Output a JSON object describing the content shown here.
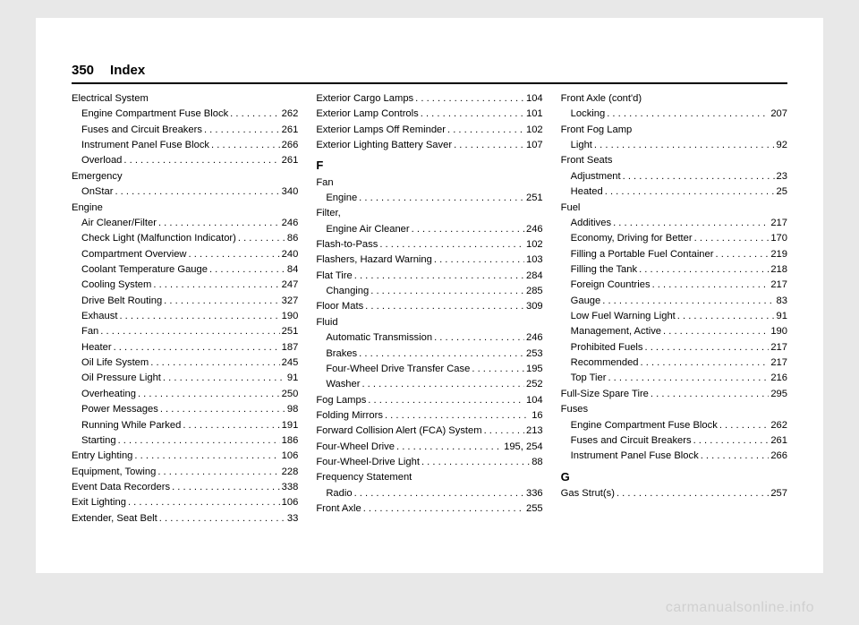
{
  "header": {
    "pageNumber": "350",
    "section": "Index"
  },
  "watermark": "carmanualsonline.info",
  "columns": [
    [
      {
        "type": "head",
        "label": "Electrical System"
      },
      {
        "type": "sub",
        "label": "Engine Compartment Fuse Block",
        "pg": "262"
      },
      {
        "type": "sub",
        "label": "Fuses and Circuit Breakers",
        "pg": "261"
      },
      {
        "type": "sub",
        "label": "Instrument Panel Fuse Block",
        "pg": "266"
      },
      {
        "type": "sub",
        "label": "Overload",
        "pg": "261"
      },
      {
        "type": "head",
        "label": "Emergency"
      },
      {
        "type": "sub",
        "label": "OnStar",
        "pg": "340"
      },
      {
        "type": "head",
        "label": "Engine"
      },
      {
        "type": "sub",
        "label": "Air Cleaner/Filter",
        "pg": "246"
      },
      {
        "type": "sub",
        "label": "Check Light (Malfunction Indicator)",
        "pg": "86"
      },
      {
        "type": "sub",
        "label": "Compartment Overview",
        "pg": "240"
      },
      {
        "type": "sub",
        "label": "Coolant Temperature Gauge",
        "pg": "84"
      },
      {
        "type": "sub",
        "label": "Cooling System",
        "pg": "247"
      },
      {
        "type": "sub",
        "label": "Drive Belt Routing",
        "pg": "327"
      },
      {
        "type": "sub",
        "label": "Exhaust",
        "pg": "190"
      },
      {
        "type": "sub",
        "label": "Fan",
        "pg": "251"
      },
      {
        "type": "sub",
        "label": "Heater",
        "pg": "187"
      },
      {
        "type": "sub",
        "label": "Oil Life System",
        "pg": "245"
      },
      {
        "type": "sub",
        "label": "Oil Pressure Light",
        "pg": "91"
      },
      {
        "type": "sub",
        "label": "Overheating",
        "pg": "250"
      },
      {
        "type": "sub",
        "label": "Power Messages",
        "pg": "98"
      },
      {
        "type": "sub",
        "label": "Running While Parked",
        "pg": "191"
      },
      {
        "type": "sub",
        "label": "Starting",
        "pg": "186"
      },
      {
        "type": "top",
        "label": "Entry Lighting",
        "pg": "106"
      },
      {
        "type": "top",
        "label": "Equipment, Towing",
        "pg": "228"
      },
      {
        "type": "top",
        "label": "Event Data Recorders",
        "pg": "338"
      },
      {
        "type": "top",
        "label": "Exit Lighting",
        "pg": "106"
      },
      {
        "type": "top",
        "label": "Extender, Seat Belt",
        "pg": "33"
      }
    ],
    [
      {
        "type": "top",
        "label": "Exterior Cargo Lamps",
        "pg": "104"
      },
      {
        "type": "top",
        "label": "Exterior Lamp Controls",
        "pg": "101"
      },
      {
        "type": "top",
        "label": "Exterior Lamps Off Reminder",
        "pg": "102"
      },
      {
        "type": "top",
        "label": "Exterior Lighting Battery Saver",
        "pg": "107"
      },
      {
        "type": "letter",
        "label": "F"
      },
      {
        "type": "head",
        "label": "Fan"
      },
      {
        "type": "sub",
        "label": "Engine",
        "pg": "251"
      },
      {
        "type": "head",
        "label": "Filter,"
      },
      {
        "type": "sub",
        "label": "Engine Air Cleaner",
        "pg": "246"
      },
      {
        "type": "top",
        "label": "Flash-to-Pass",
        "pg": "102"
      },
      {
        "type": "top",
        "label": "Flashers, Hazard Warning",
        "pg": "103"
      },
      {
        "type": "top",
        "label": "Flat Tire",
        "pg": "284"
      },
      {
        "type": "sub",
        "label": "Changing",
        "pg": "285"
      },
      {
        "type": "top",
        "label": "Floor Mats",
        "pg": "309"
      },
      {
        "type": "head",
        "label": "Fluid"
      },
      {
        "type": "sub",
        "label": "Automatic Transmission",
        "pg": "246"
      },
      {
        "type": "sub",
        "label": "Brakes",
        "pg": "253"
      },
      {
        "type": "sub",
        "label": "Four-Wheel Drive Transfer Case",
        "pg": "195"
      },
      {
        "type": "sub",
        "label": "Washer",
        "pg": "252"
      },
      {
        "type": "top",
        "label": "Fog Lamps",
        "pg": "104"
      },
      {
        "type": "top",
        "label": "Folding Mirrors",
        "pg": "16"
      },
      {
        "type": "top",
        "label": "Forward Collision Alert (FCA) System",
        "pg": "213"
      },
      {
        "type": "top",
        "label": "Four-Wheel Drive",
        "pg": "195, 254"
      },
      {
        "type": "top",
        "label": "Four-Wheel-Drive Light",
        "pg": "88"
      },
      {
        "type": "head",
        "label": "Frequency Statement"
      },
      {
        "type": "sub",
        "label": "Radio",
        "pg": "336"
      },
      {
        "type": "top",
        "label": "Front Axle",
        "pg": "255"
      }
    ],
    [
      {
        "type": "head",
        "label": "Front Axle (cont'd)"
      },
      {
        "type": "sub",
        "label": "Locking",
        "pg": "207"
      },
      {
        "type": "head",
        "label": "Front Fog Lamp"
      },
      {
        "type": "sub",
        "label": "Light",
        "pg": "92"
      },
      {
        "type": "head",
        "label": "Front Seats"
      },
      {
        "type": "sub",
        "label": "Adjustment",
        "pg": "23"
      },
      {
        "type": "sub",
        "label": "Heated",
        "pg": "25"
      },
      {
        "type": "head",
        "label": "Fuel"
      },
      {
        "type": "sub",
        "label": "Additives",
        "pg": "217"
      },
      {
        "type": "sub",
        "label": "Economy, Driving for Better",
        "pg": "170"
      },
      {
        "type": "sub",
        "label": "Filling a Portable Fuel Container",
        "pg": "219"
      },
      {
        "type": "sub",
        "label": "Filling the Tank",
        "pg": "218"
      },
      {
        "type": "sub",
        "label": "Foreign Countries",
        "pg": "217"
      },
      {
        "type": "sub",
        "label": "Gauge",
        "pg": "83"
      },
      {
        "type": "sub",
        "label": "Low Fuel Warning Light",
        "pg": "91"
      },
      {
        "type": "sub",
        "label": "Management, Active",
        "pg": "190"
      },
      {
        "type": "sub",
        "label": "Prohibited Fuels",
        "pg": "217"
      },
      {
        "type": "sub",
        "label": "Recommended",
        "pg": "217"
      },
      {
        "type": "sub",
        "label": "Top Tier",
        "pg": "216"
      },
      {
        "type": "top",
        "label": "Full-Size Spare Tire",
        "pg": "295"
      },
      {
        "type": "head",
        "label": "Fuses"
      },
      {
        "type": "sub",
        "label": "Engine Compartment Fuse Block",
        "pg": "262"
      },
      {
        "type": "sub",
        "label": "Fuses and Circuit Breakers",
        "pg": "261"
      },
      {
        "type": "sub",
        "label": "Instrument Panel Fuse Block",
        "pg": "266"
      },
      {
        "type": "letter",
        "label": "G"
      },
      {
        "type": "top",
        "label": "Gas Strut(s)",
        "pg": "257"
      }
    ]
  ]
}
